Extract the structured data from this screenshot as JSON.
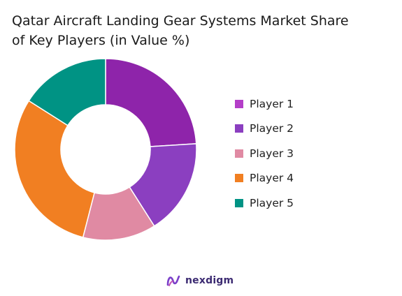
{
  "chart_data": {
    "type": "pie",
    "title_line1": "Qatar Aircraft Landing Gear Systems Market Share",
    "title_line2": "of Key Players (in Value %)",
    "categories": [
      "Player 1",
      "Player 2",
      "Player 3",
      "Player 4",
      "Player 5"
    ],
    "values": [
      24,
      17,
      13,
      30,
      16
    ],
    "colors": [
      "#8e24aa",
      "#8b3fc0",
      "#e08aa3",
      "#f17f22",
      "#009384"
    ],
    "legend_colors": [
      "#b43ec8",
      "#8b3fc0",
      "#e08aa3",
      "#f17f22",
      "#009384"
    ],
    "legend_position": "right",
    "donut": true
  },
  "brand": {
    "name": "nexdigm"
  }
}
